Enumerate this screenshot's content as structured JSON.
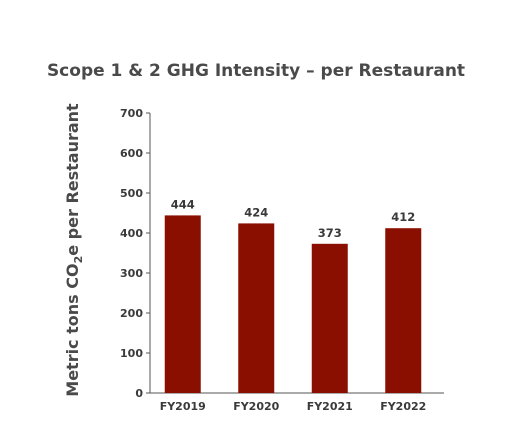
{
  "chart_data": {
    "type": "bar",
    "title": "Scope 1 & 2 GHG Intensity – per Restaurant",
    "ylabel_parts": [
      "Metric tons CO",
      "2",
      "e per Restaurant"
    ],
    "xlabel": "",
    "categories": [
      "FY2019",
      "FY2020",
      "FY2021",
      "FY2022"
    ],
    "values": [
      444,
      424,
      373,
      412
    ],
    "data_labels": [
      "444",
      "424",
      "373",
      "412"
    ],
    "ylim": [
      0,
      700
    ],
    "yticks": [
      0,
      100,
      200,
      300,
      400,
      500,
      600,
      700
    ],
    "grid": false,
    "legend": "none",
    "bar_color": "#8b0f00"
  }
}
